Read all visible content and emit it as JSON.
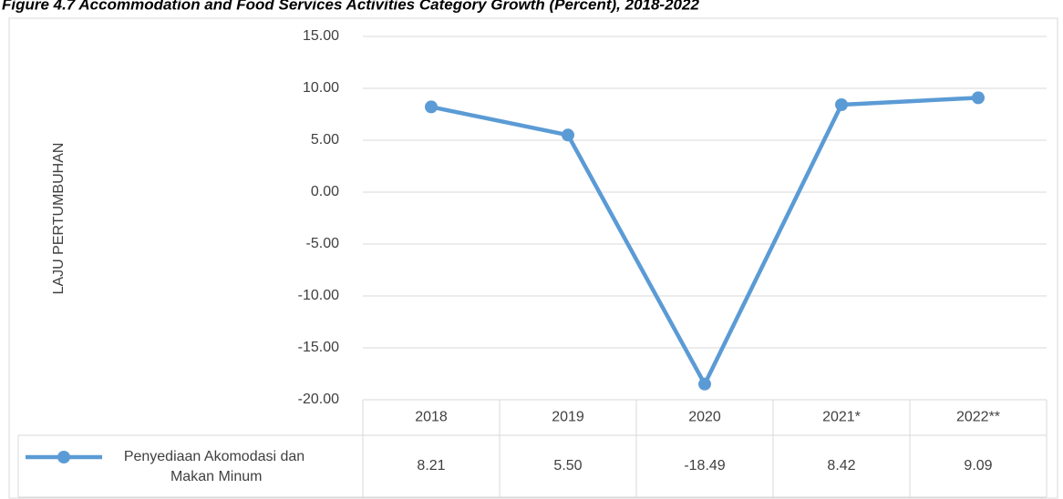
{
  "chart_data": {
    "type": "line",
    "title": "Figure 4.7 Accommodation and Food Services Activities Category Growth (Percent), 2018-2022",
    "y_label": "LAJU PERTUMBUHAN",
    "categories": [
      "2018",
      "2019",
      "2020",
      "2021*",
      "2022**"
    ],
    "series": [
      {
        "name": "Penyediaan Akomodasi dan Makan Minum",
        "color": "#5b9bd5",
        "values": [
          8.21,
          5.5,
          -18.49,
          8.42,
          9.09
        ],
        "value_labels": [
          "8.21",
          "5.50",
          "-18.49",
          "8.42",
          "9.09"
        ]
      }
    ],
    "ylim": [
      -20,
      15
    ],
    "yticks": [
      {
        "value": -20,
        "label": "-20.00"
      },
      {
        "value": -15,
        "label": "-15.00"
      },
      {
        "value": -10,
        "label": "-10.00"
      },
      {
        "value": -5,
        "label": "-5.00"
      },
      {
        "value": 0,
        "label": "0.00"
      },
      {
        "value": 5,
        "label": "5.00"
      },
      {
        "value": 10,
        "label": "10.00"
      },
      {
        "value": 15,
        "label": "15.00"
      }
    ],
    "grid": true
  }
}
